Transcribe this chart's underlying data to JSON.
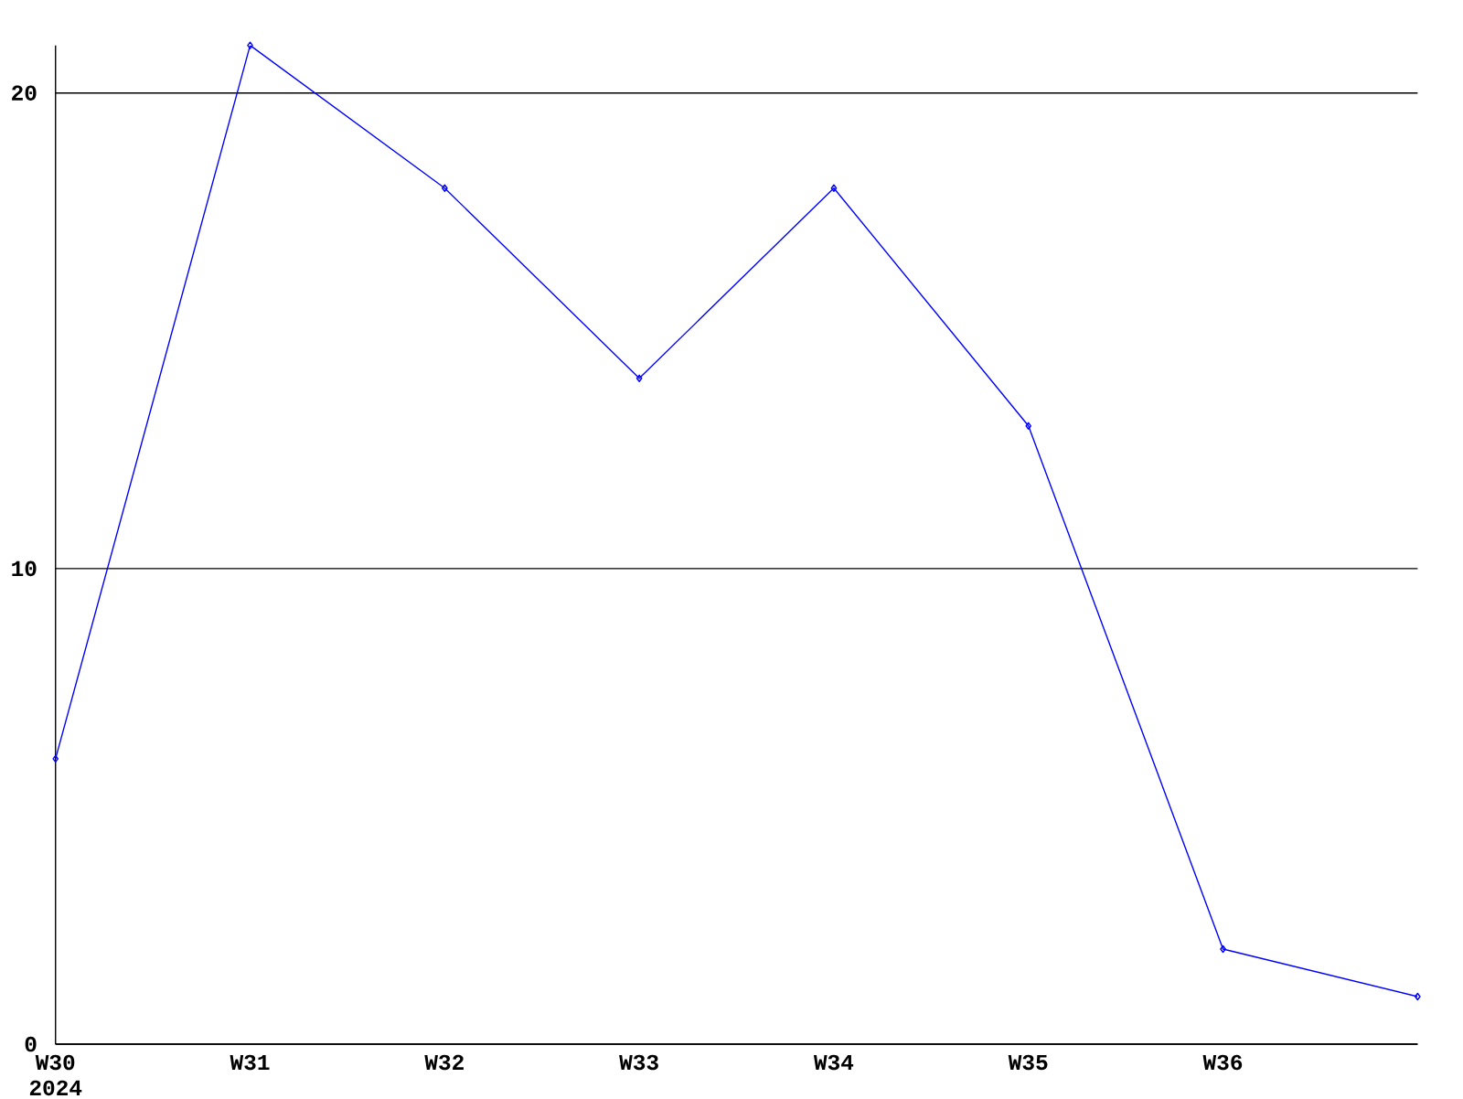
{
  "chart_data": {
    "type": "line",
    "categories": [
      "W30 2024",
      "W31",
      "W32",
      "W33",
      "W34",
      "W35",
      "W36",
      null
    ],
    "values": [
      6,
      21,
      18,
      14,
      18,
      13,
      2,
      1
    ],
    "color": "#0000ff",
    "marker": "diamond",
    "ylim": [
      0,
      21
    ],
    "yticks": [
      0,
      10,
      20
    ],
    "grid": "y"
  }
}
